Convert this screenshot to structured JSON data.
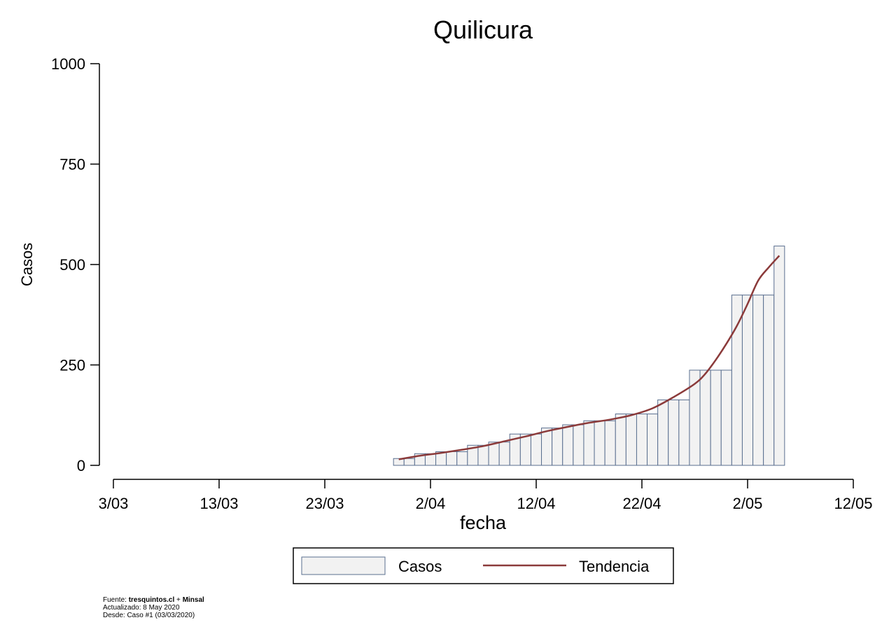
{
  "chart_data": {
    "type": "bar",
    "title": "Quilicura",
    "xlabel": "fecha",
    "ylabel": "Casos",
    "ylim": [
      0,
      1000
    ],
    "yticks": [
      0,
      250,
      500,
      750,
      1000
    ],
    "x_axis": {
      "start": "2020-03-03",
      "end": "2020-05-12",
      "ticks": [
        {
          "date": "2020-03-03",
          "label": "3/03"
        },
        {
          "date": "2020-03-13",
          "label": "13/03"
        },
        {
          "date": "2020-03-23",
          "label": "23/03"
        },
        {
          "date": "2020-04-02",
          "label": "2/04"
        },
        {
          "date": "2020-04-12",
          "label": "12/04"
        },
        {
          "date": "2020-04-22",
          "label": "22/04"
        },
        {
          "date": "2020-05-02",
          "label": "2/05"
        },
        {
          "date": "2020-05-12",
          "label": "12/05"
        }
      ]
    },
    "grid": false,
    "legend_position": "bottom",
    "series": [
      {
        "name": "Casos",
        "type": "bar",
        "color": "#f2f2f2",
        "edge_color": "#5a6f8f",
        "points": [
          {
            "date": "2020-03-30",
            "value": 17
          },
          {
            "date": "2020-03-31",
            "value": 17
          },
          {
            "date": "2020-04-01",
            "value": 29
          },
          {
            "date": "2020-04-02",
            "value": 29
          },
          {
            "date": "2020-04-03",
            "value": 34
          },
          {
            "date": "2020-04-04",
            "value": 34
          },
          {
            "date": "2020-04-05",
            "value": 34
          },
          {
            "date": "2020-04-06",
            "value": 50
          },
          {
            "date": "2020-04-07",
            "value": 50
          },
          {
            "date": "2020-04-08",
            "value": 58
          },
          {
            "date": "2020-04-09",
            "value": 58
          },
          {
            "date": "2020-04-10",
            "value": 78
          },
          {
            "date": "2020-04-11",
            "value": 78
          },
          {
            "date": "2020-04-12",
            "value": 78
          },
          {
            "date": "2020-04-13",
            "value": 93
          },
          {
            "date": "2020-04-14",
            "value": 93
          },
          {
            "date": "2020-04-15",
            "value": 101
          },
          {
            "date": "2020-04-16",
            "value": 101
          },
          {
            "date": "2020-04-17",
            "value": 111
          },
          {
            "date": "2020-04-18",
            "value": 111
          },
          {
            "date": "2020-04-19",
            "value": 111
          },
          {
            "date": "2020-04-20",
            "value": 128
          },
          {
            "date": "2020-04-21",
            "value": 128
          },
          {
            "date": "2020-04-22",
            "value": 128
          },
          {
            "date": "2020-04-23",
            "value": 128
          },
          {
            "date": "2020-04-24",
            "value": 163
          },
          {
            "date": "2020-04-25",
            "value": 163
          },
          {
            "date": "2020-04-26",
            "value": 163
          },
          {
            "date": "2020-04-27",
            "value": 237
          },
          {
            "date": "2020-04-28",
            "value": 237
          },
          {
            "date": "2020-04-29",
            "value": 237
          },
          {
            "date": "2020-04-30",
            "value": 237
          },
          {
            "date": "2020-05-01",
            "value": 424
          },
          {
            "date": "2020-05-02",
            "value": 424
          },
          {
            "date": "2020-05-03",
            "value": 424
          },
          {
            "date": "2020-05-04",
            "value": 424
          },
          {
            "date": "2020-05-05",
            "value": 546
          }
        ]
      },
      {
        "name": "Tendencia",
        "type": "line",
        "color": "#8b3a3a",
        "points": [
          {
            "date": "2020-03-30",
            "value": 15
          },
          {
            "date": "2020-04-01",
            "value": 24
          },
          {
            "date": "2020-04-03",
            "value": 31
          },
          {
            "date": "2020-04-05",
            "value": 39
          },
          {
            "date": "2020-04-07",
            "value": 48
          },
          {
            "date": "2020-04-09",
            "value": 60
          },
          {
            "date": "2020-04-11",
            "value": 72
          },
          {
            "date": "2020-04-13",
            "value": 85
          },
          {
            "date": "2020-04-15",
            "value": 96
          },
          {
            "date": "2020-04-17",
            "value": 106
          },
          {
            "date": "2020-04-19",
            "value": 114
          },
          {
            "date": "2020-04-21",
            "value": 125
          },
          {
            "date": "2020-04-23",
            "value": 142
          },
          {
            "date": "2020-04-25",
            "value": 170
          },
          {
            "date": "2020-04-27",
            "value": 203
          },
          {
            "date": "2020-04-28",
            "value": 228
          },
          {
            "date": "2020-04-29",
            "value": 263
          },
          {
            "date": "2020-04-30",
            "value": 303
          },
          {
            "date": "2020-05-01",
            "value": 348
          },
          {
            "date": "2020-05-02",
            "value": 402
          },
          {
            "date": "2020-05-03",
            "value": 460
          },
          {
            "date": "2020-05-04",
            "value": 493
          },
          {
            "date": "2020-05-05",
            "value": 522
          }
        ]
      }
    ]
  },
  "footer": {
    "source_label": "Fuente: ",
    "source_site": "tresquintos.cl",
    "source_sep": " + ",
    "source_org": "Minsal",
    "updated": "Actualizado: 8 May 2020",
    "since": "Desde: Caso #1  (03/03/2020)"
  }
}
